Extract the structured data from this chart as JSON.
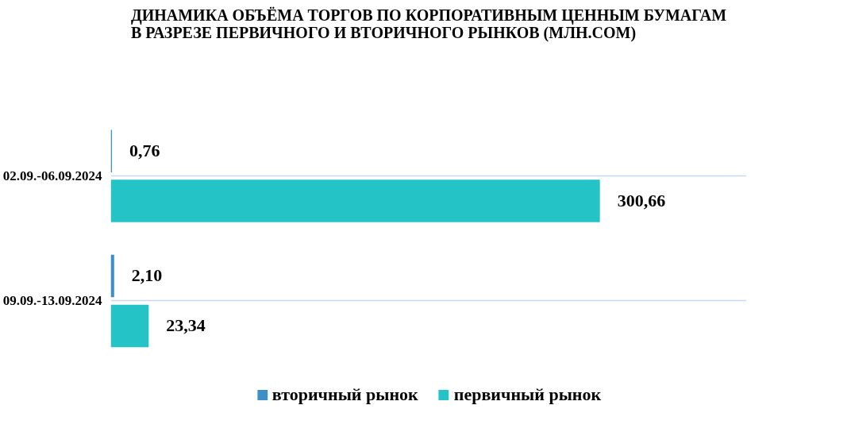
{
  "chart_data": {
    "type": "bar",
    "orientation": "horizontal",
    "title": "ДИНАМИКА ОБЪЁМА ТОРГОВ ПО КОРПОРАТИВНЫМ ЦЕННЫМ БУМАГАМ\nВ РАЗРЕЗЕ ПЕРВИЧНОГО И ВТОРИЧНОГО РЫНКОВ  (МЛН.СОМ)",
    "categories": [
      "02.09.-06.09.2024",
      "09.09.-13.09.2024"
    ],
    "series": [
      {
        "name": "вторичный рынок",
        "color": "#3d8fc8",
        "values": [
          0.76,
          2.1
        ],
        "value_labels": [
          "0,76",
          "2,10"
        ]
      },
      {
        "name": "первичный рынок",
        "color": "#24c3c6",
        "values": [
          300.66,
          23.34
        ],
        "value_labels": [
          "300,66",
          "23,34"
        ]
      }
    ],
    "grid": "y",
    "legend": "bottom",
    "tick_labels": "y"
  }
}
